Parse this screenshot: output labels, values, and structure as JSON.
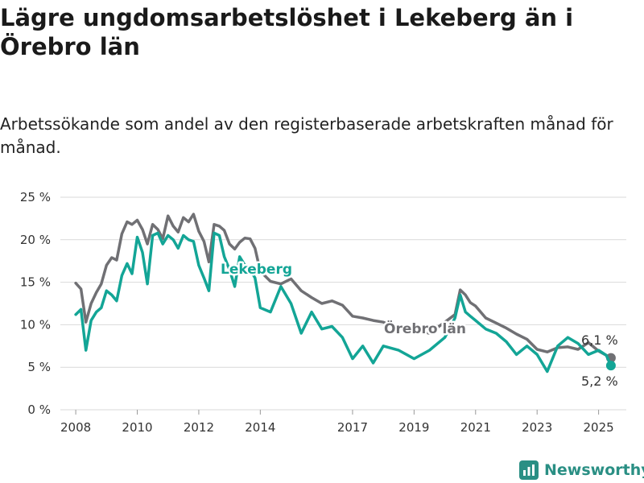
{
  "title": "Lägre ungdomsarbetslöshet i Lekeberg än i Örebro län",
  "subtitle": "Arbetssökande som andel av den registerbaserade arbetskraften månad för månad.",
  "brand": "Newsworthy",
  "colors": {
    "lekeberg": "#13a596",
    "orebro": "#707074",
    "grid": "#d9d9d9",
    "brand": "#2a8f84"
  },
  "chart_data": {
    "type": "line",
    "title": "Lägre ungdomsarbetslöshet i Lekeberg än i Örebro län",
    "subtitle": "Arbetssökande som andel av den registerbaserade arbetskraften månad för månad.",
    "ylim": [
      0,
      25
    ],
    "xlim": [
      2007.5,
      2025.9
    ],
    "y_ticks": [
      0,
      5,
      10,
      15,
      20,
      25
    ],
    "y_tick_labels": [
      "0 %",
      "5 %",
      "10 %",
      "15 %",
      "20 %",
      "25 %"
    ],
    "x_ticks": [
      2008,
      2010,
      2012,
      2014,
      2017,
      2019,
      2021,
      2023,
      2025
    ],
    "x_tick_labels": [
      "2008",
      "2010",
      "2012",
      "2014",
      "2017",
      "2019",
      "2021",
      "2023",
      "2025"
    ],
    "grid": true,
    "legend": "inline labels",
    "series": [
      {
        "name": "Örebro län",
        "end_label": "6,1 %",
        "x": [
          2008.0,
          2008.17,
          2008.33,
          2008.5,
          2008.67,
          2008.83,
          2009.0,
          2009.17,
          2009.33,
          2009.5,
          2009.67,
          2009.83,
          2010.0,
          2010.17,
          2010.33,
          2010.5,
          2010.67,
          2010.83,
          2011.0,
          2011.17,
          2011.33,
          2011.5,
          2011.67,
          2011.83,
          2012.0,
          2012.17,
          2012.33,
          2012.5,
          2012.67,
          2012.83,
          2013.0,
          2013.17,
          2013.33,
          2013.5,
          2013.67,
          2013.83,
          2014.0,
          2014.33,
          2014.67,
          2015.0,
          2015.33,
          2015.67,
          2016.0,
          2016.33,
          2016.67,
          2017.0,
          2017.33,
          2017.67,
          2018.0,
          2018.5,
          2019.0,
          2019.5,
          2020.0,
          2020.33,
          2020.5,
          2020.67,
          2020.83,
          2021.0,
          2021.33,
          2021.67,
          2022.0,
          2022.33,
          2022.67,
          2023.0,
          2023.33,
          2023.67,
          2024.0,
          2024.33,
          2024.67,
          2025.0,
          2025.25,
          2025.4
        ],
        "values": [
          14.9,
          14.2,
          10.3,
          12.5,
          13.8,
          14.8,
          17.0,
          17.9,
          17.6,
          20.7,
          22.1,
          21.8,
          22.3,
          21.2,
          19.5,
          21.8,
          21.2,
          20.1,
          22.8,
          21.6,
          20.9,
          22.6,
          22.1,
          23.0,
          21.0,
          19.8,
          17.4,
          21.8,
          21.6,
          21.1,
          19.5,
          18.9,
          19.7,
          20.2,
          20.1,
          19.0,
          16.3,
          15.1,
          14.8,
          15.4,
          14.0,
          13.2,
          12.5,
          12.8,
          12.3,
          11.0,
          10.8,
          10.5,
          10.3,
          9.6,
          9.4,
          9.0,
          10.3,
          11.2,
          14.1,
          13.5,
          12.6,
          12.2,
          10.8,
          10.2,
          9.6,
          8.9,
          8.3,
          7.1,
          6.8,
          7.3,
          7.4,
          7.1,
          7.9,
          6.9,
          6.4,
          6.1
        ]
      },
      {
        "name": "Lekeberg",
        "end_label": "5,2 %",
        "x": [
          2008.0,
          2008.17,
          2008.33,
          2008.5,
          2008.67,
          2008.83,
          2009.0,
          2009.17,
          2009.33,
          2009.5,
          2009.67,
          2009.83,
          2010.0,
          2010.17,
          2010.33,
          2010.5,
          2010.67,
          2010.83,
          2011.0,
          2011.17,
          2011.33,
          2011.5,
          2011.67,
          2011.83,
          2012.0,
          2012.17,
          2012.33,
          2012.5,
          2012.67,
          2012.83,
          2013.0,
          2013.17,
          2013.33,
          2013.5,
          2013.67,
          2013.83,
          2014.0,
          2014.33,
          2014.67,
          2015.0,
          2015.33,
          2015.67,
          2016.0,
          2016.33,
          2016.67,
          2017.0,
          2017.33,
          2017.67,
          2018.0,
          2018.5,
          2019.0,
          2019.5,
          2020.0,
          2020.33,
          2020.5,
          2020.67,
          2020.83,
          2021.0,
          2021.33,
          2021.67,
          2022.0,
          2022.33,
          2022.67,
          2023.0,
          2023.33,
          2023.67,
          2024.0,
          2024.33,
          2024.67,
          2025.0,
          2025.25,
          2025.4
        ],
        "values": [
          11.2,
          11.8,
          7.0,
          10.5,
          11.5,
          12.0,
          14.0,
          13.5,
          12.8,
          15.8,
          17.2,
          16.0,
          20.3,
          18.5,
          14.8,
          20.5,
          20.8,
          19.5,
          20.5,
          20.0,
          19.0,
          20.5,
          20.0,
          19.8,
          17.0,
          15.5,
          14.0,
          20.8,
          20.5,
          18.0,
          16.5,
          14.5,
          18.0,
          17.0,
          16.5,
          15.5,
          12.0,
          11.5,
          14.5,
          12.5,
          9.0,
          11.5,
          9.5,
          9.8,
          8.5,
          6.0,
          7.5,
          5.5,
          7.5,
          7.0,
          6.0,
          7.0,
          8.5,
          10.8,
          13.5,
          11.5,
          11.0,
          10.5,
          9.5,
          9.0,
          8.0,
          6.5,
          7.5,
          6.5,
          4.5,
          7.5,
          8.5,
          7.8,
          6.5,
          7.0,
          6.4,
          5.2
        ]
      }
    ]
  }
}
